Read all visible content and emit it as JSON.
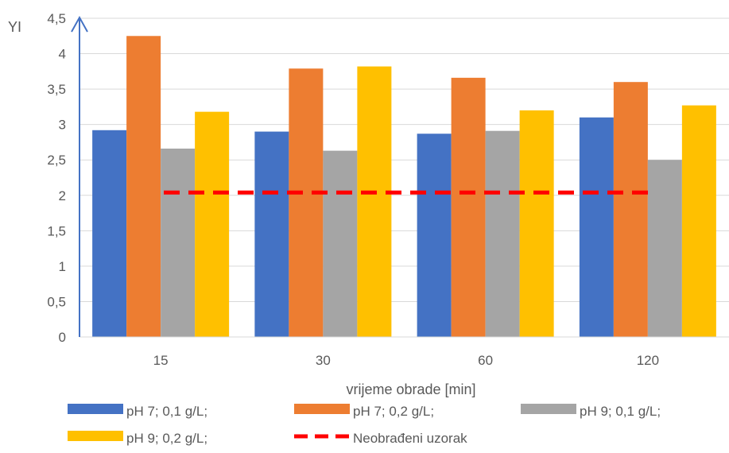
{
  "chart_data": {
    "type": "bar",
    "title": "",
    "ylabel": "YI",
    "xlabel": "vrijeme obrade [min]",
    "categories": [
      "15",
      "30",
      "60",
      "120"
    ],
    "ylim": [
      0,
      4.5
    ],
    "yticks": [
      "0",
      "0,5",
      "1",
      "1,5",
      "2",
      "2,5",
      "3",
      "3,5",
      "4",
      "4,5"
    ],
    "grid": true,
    "legend_position": "bottom",
    "series": [
      {
        "name": "pH 7; 0,1 g/L;",
        "color": "#4472c4",
        "values": [
          2.92,
          2.9,
          2.87,
          3.1
        ]
      },
      {
        "name": "pH 7; 0,2 g/L;",
        "color": "#ed7d31",
        "values": [
          4.25,
          3.79,
          3.66,
          3.6
        ]
      },
      {
        "name": "pH 9; 0,1 g/L;",
        "color": "#a5a5a5",
        "values": [
          2.66,
          2.63,
          2.91,
          2.5
        ]
      },
      {
        "name": "pH 9; 0,2 g/L;",
        "color": "#ffc000",
        "values": [
          3.18,
          3.82,
          3.2,
          3.27
        ]
      }
    ],
    "reference_line": {
      "name": "Neobrađeni uzorak",
      "color": "#ff0000",
      "style": "dashed",
      "value": 2.04
    }
  }
}
